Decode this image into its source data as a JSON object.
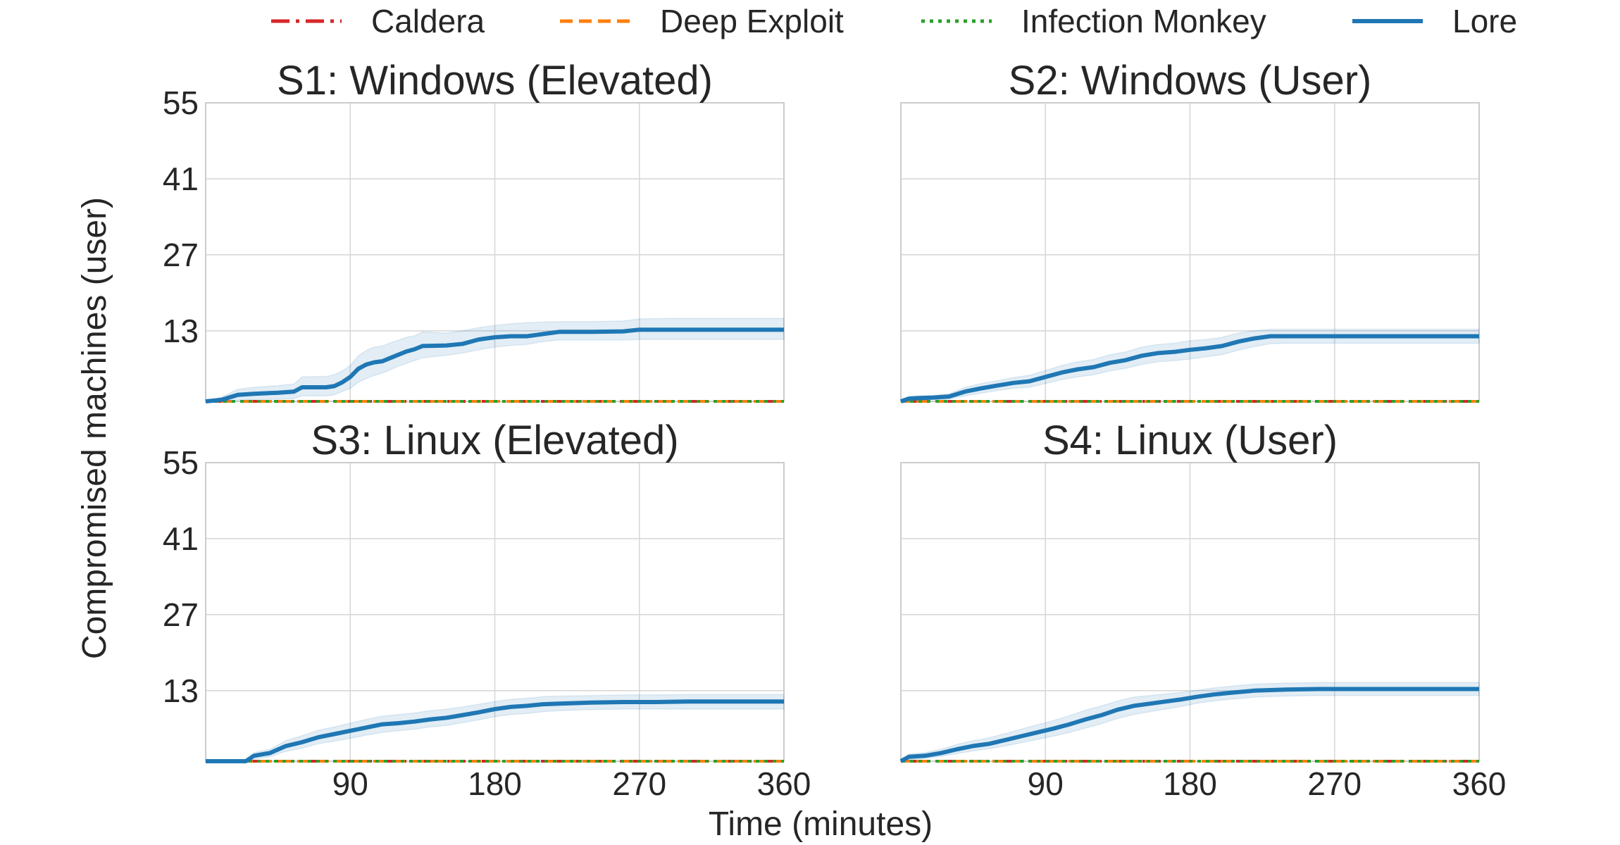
{
  "figure": {
    "xlabel": "Time (minutes)",
    "ylabel": "Compromised machines (user)"
  },
  "legend": [
    {
      "name": "Caldera",
      "color": "#d62728",
      "dash": "dashdot"
    },
    {
      "name": "Deep Exploit",
      "color": "#ff7f0e",
      "dash": "dashed"
    },
    {
      "name": "Infection Monkey",
      "color": "#2ca02c",
      "dash": "dotted"
    },
    {
      "name": "Lore",
      "color": "#1f77b4",
      "dash": "solid"
    }
  ],
  "chart_data": [
    {
      "type": "line",
      "title": "S1: Windows (Elevated)",
      "xlim": [
        0,
        360
      ],
      "ylim": [
        0,
        55
      ],
      "xticks": [
        "90",
        "180",
        "270",
        "360"
      ],
      "yticks": [
        "55",
        "41",
        "27",
        "13"
      ],
      "grid": true,
      "series": [
        {
          "name": "Caldera",
          "x": [
            0,
            360
          ],
          "values": [
            0,
            0
          ]
        },
        {
          "name": "Deep Exploit",
          "x": [
            0,
            360
          ],
          "values": [
            0,
            0
          ]
        },
        {
          "name": "Infection Monkey",
          "x": [
            0,
            360
          ],
          "values": [
            0,
            0
          ]
        },
        {
          "name": "Lore",
          "x": [
            0,
            10,
            20,
            30,
            45,
            55,
            60,
            75,
            80,
            85,
            90,
            95,
            100,
            105,
            110,
            115,
            120,
            125,
            130,
            135,
            150,
            160,
            170,
            180,
            190,
            200,
            210,
            220,
            240,
            260,
            270,
            290,
            360
          ],
          "values": [
            0,
            0.3,
            1.2,
            1.4,
            1.6,
            1.8,
            2.6,
            2.6,
            2.8,
            3.5,
            4.5,
            6.0,
            6.8,
            7.2,
            7.4,
            8.0,
            8.6,
            9.2,
            9.6,
            10.2,
            10.3,
            10.6,
            11.4,
            11.8,
            12.0,
            12.0,
            12.4,
            12.8,
            12.8,
            12.9,
            13.2,
            13.2,
            13.2
          ],
          "lower": [
            0,
            0,
            0.2,
            0.3,
            0.4,
            0.5,
            1.0,
            1.0,
            1.2,
            1.8,
            2.4,
            3.5,
            4.2,
            4.8,
            5.2,
            5.8,
            6.5,
            7.0,
            7.5,
            8.0,
            8.5,
            8.9,
            9.5,
            10.0,
            10.3,
            10.5,
            11.0,
            11.3,
            11.3,
            11.3,
            11.4,
            11.4,
            11.4
          ],
          "upper": [
            0,
            0.8,
            2.2,
            2.6,
            2.9,
            3.2,
            4.5,
            4.6,
            4.9,
            5.6,
            6.6,
            8.4,
            9.4,
            10.0,
            10.2,
            10.8,
            11.3,
            11.8,
            12.1,
            12.8,
            12.6,
            13.0,
            13.6,
            14.0,
            14.3,
            14.5,
            14.6,
            14.7,
            14.7,
            14.8,
            15.2,
            15.3,
            15.3
          ]
        }
      ]
    },
    {
      "type": "line",
      "title": "S2: Windows (User)",
      "xlim": [
        0,
        360
      ],
      "ylim": [
        0,
        55
      ],
      "xticks": [
        "90",
        "180",
        "270",
        "360"
      ],
      "yticks": [
        "55",
        "41",
        "27",
        "13"
      ],
      "grid": true,
      "series": [
        {
          "name": "Caldera",
          "x": [
            0,
            360
          ],
          "values": [
            0,
            0
          ]
        },
        {
          "name": "Deep Exploit",
          "x": [
            0,
            360
          ],
          "values": [
            0,
            0
          ]
        },
        {
          "name": "Infection Monkey",
          "x": [
            0,
            360
          ],
          "values": [
            0,
            0
          ]
        },
        {
          "name": "Lore",
          "x": [
            0,
            5,
            10,
            20,
            30,
            40,
            50,
            60,
            70,
            80,
            90,
            100,
            110,
            120,
            130,
            140,
            150,
            160,
            170,
            180,
            190,
            200,
            210,
            220,
            230,
            240,
            260,
            300,
            360
          ],
          "values": [
            0,
            0.5,
            0.6,
            0.7,
            0.9,
            1.8,
            2.4,
            2.9,
            3.4,
            3.7,
            4.5,
            5.3,
            5.9,
            6.3,
            7.1,
            7.6,
            8.4,
            8.9,
            9.1,
            9.5,
            9.8,
            10.2,
            11.0,
            11.6,
            12.0,
            12.0,
            12.0,
            12.0,
            12.0
          ],
          "lower": [
            0,
            0.1,
            0.2,
            0.3,
            0.4,
            1.0,
            1.5,
            2.0,
            2.4,
            2.6,
            3.3,
            4.0,
            4.5,
            4.9,
            5.6,
            6.1,
            6.8,
            7.3,
            7.5,
            7.8,
            8.2,
            8.6,
            9.4,
            10.1,
            10.6,
            10.7,
            10.7,
            10.7,
            10.7
          ],
          "upper": [
            0,
            0.9,
            1.0,
            1.1,
            1.4,
            2.6,
            3.3,
            3.8,
            4.4,
            4.8,
            5.7,
            6.6,
            7.3,
            7.7,
            8.6,
            9.1,
            10.0,
            10.5,
            10.7,
            11.2,
            11.4,
            11.8,
            12.6,
            13.0,
            13.3,
            13.3,
            13.3,
            13.3,
            13.3
          ]
        }
      ]
    },
    {
      "type": "line",
      "title": "S3: Linux (Elevated)",
      "xlim": [
        0,
        360
      ],
      "ylim": [
        0,
        55
      ],
      "xticks": [
        "90",
        "180",
        "270",
        "360"
      ],
      "yticks": [
        "55",
        "41",
        "27",
        "13"
      ],
      "grid": true,
      "series": [
        {
          "name": "Caldera",
          "x": [
            0,
            360
          ],
          "values": [
            0,
            0
          ]
        },
        {
          "name": "Deep Exploit",
          "x": [
            0,
            360
          ],
          "values": [
            0,
            0
          ]
        },
        {
          "name": "Infection Monkey",
          "x": [
            0,
            360
          ],
          "values": [
            0,
            0
          ]
        },
        {
          "name": "Lore",
          "x": [
            0,
            25,
            30,
            40,
            50,
            60,
            70,
            80,
            90,
            100,
            110,
            120,
            130,
            140,
            150,
            160,
            170,
            180,
            190,
            200,
            210,
            220,
            240,
            260,
            280,
            300,
            360
          ],
          "values": [
            0,
            0,
            1.0,
            1.5,
            2.8,
            3.5,
            4.4,
            5.0,
            5.6,
            6.2,
            6.8,
            7.0,
            7.3,
            7.7,
            8.0,
            8.5,
            9.0,
            9.6,
            10.0,
            10.2,
            10.5,
            10.6,
            10.8,
            10.9,
            10.9,
            11.0,
            11.0
          ],
          "lower": [
            0,
            0,
            0.4,
            0.8,
            1.8,
            2.4,
            3.2,
            3.7,
            4.2,
            4.8,
            5.3,
            5.6,
            5.9,
            6.3,
            6.6,
            7.1,
            7.6,
            8.2,
            8.6,
            8.8,
            9.1,
            9.3,
            9.5,
            9.6,
            9.6,
            9.6,
            9.6
          ],
          "upper": [
            0,
            0,
            1.6,
            2.2,
            3.8,
            4.7,
            5.7,
            6.3,
            7.0,
            7.7,
            8.3,
            8.6,
            8.9,
            9.3,
            9.6,
            10.0,
            10.5,
            11.0,
            11.4,
            11.6,
            11.9,
            12.0,
            12.1,
            12.2,
            12.2,
            12.3,
            12.3
          ]
        }
      ]
    },
    {
      "type": "line",
      "title": "S4: Linux (User)",
      "xlim": [
        0,
        360
      ],
      "ylim": [
        0,
        55
      ],
      "xticks": [
        "90",
        "180",
        "270",
        "360"
      ],
      "yticks": [
        "55",
        "41",
        "27",
        "13"
      ],
      "grid": true,
      "series": [
        {
          "name": "Caldera",
          "x": [
            0,
            360
          ],
          "values": [
            0,
            0
          ]
        },
        {
          "name": "Deep Exploit",
          "x": [
            0,
            360
          ],
          "values": [
            0,
            0
          ]
        },
        {
          "name": "Infection Monkey",
          "x": [
            0,
            360
          ],
          "values": [
            0,
            0
          ]
        },
        {
          "name": "Lore",
          "x": [
            0,
            5,
            15,
            25,
            35,
            45,
            55,
            65,
            75,
            85,
            95,
            105,
            115,
            125,
            135,
            145,
            155,
            165,
            175,
            185,
            195,
            205,
            220,
            240,
            260,
            300,
            360
          ],
          "values": [
            0,
            0.8,
            1.0,
            1.5,
            2.2,
            2.8,
            3.2,
            3.9,
            4.6,
            5.3,
            6.0,
            6.8,
            7.7,
            8.5,
            9.5,
            10.2,
            10.6,
            11.0,
            11.4,
            11.9,
            12.3,
            12.6,
            13.0,
            13.2,
            13.3,
            13.3,
            13.3
          ],
          "lower": [
            0,
            0.3,
            0.5,
            0.9,
            1.4,
            1.9,
            2.3,
            2.8,
            3.4,
            4.0,
            4.6,
            5.3,
            6.1,
            6.9,
            7.9,
            8.6,
            9.1,
            9.6,
            10.1,
            10.7,
            11.1,
            11.4,
            11.8,
            12.0,
            12.1,
            12.1,
            12.1
          ],
          "upper": [
            0,
            1.3,
            1.6,
            2.2,
            3.1,
            3.8,
            4.3,
            5.1,
            5.9,
            6.7,
            7.5,
            8.4,
            9.4,
            10.2,
            11.1,
            11.8,
            12.1,
            12.4,
            12.7,
            13.1,
            13.5,
            13.8,
            14.2,
            14.4,
            14.5,
            14.5,
            14.5
          ]
        }
      ]
    }
  ]
}
